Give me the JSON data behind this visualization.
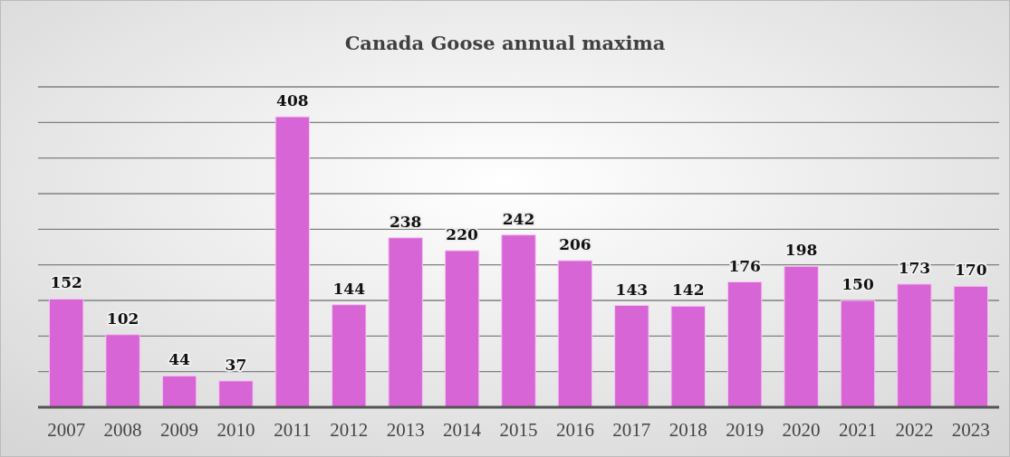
{
  "chart_data": {
    "type": "bar",
    "title": "Canada Goose annual maxima",
    "categories": [
      "2007",
      "2008",
      "2009",
      "2010",
      "2011",
      "2012",
      "2013",
      "2014",
      "2015",
      "2016",
      "2017",
      "2018",
      "2019",
      "2020",
      "2021",
      "2022",
      "2023"
    ],
    "values": [
      152,
      102,
      44,
      37,
      408,
      144,
      238,
      220,
      242,
      206,
      143,
      142,
      176,
      198,
      150,
      173,
      170
    ],
    "color": "#d865d5",
    "ylim": [
      0,
      450
    ],
    "yticks": [
      {
        "value": 0,
        "label": null
      },
      {
        "value": 50,
        "label": null
      },
      {
        "value": 100,
        "label": null
      },
      {
        "value": 150,
        "label": null
      },
      {
        "value": 200,
        "label": null
      },
      {
        "value": 250,
        "label": null
      },
      {
        "value": 300,
        "label": null
      },
      {
        "value": 350,
        "label": null
      },
      {
        "value": 400,
        "label": null
      },
      {
        "value": 450,
        "label": null
      }
    ],
    "tick_labels": "x",
    "grid": "y",
    "data_labels": true
  }
}
